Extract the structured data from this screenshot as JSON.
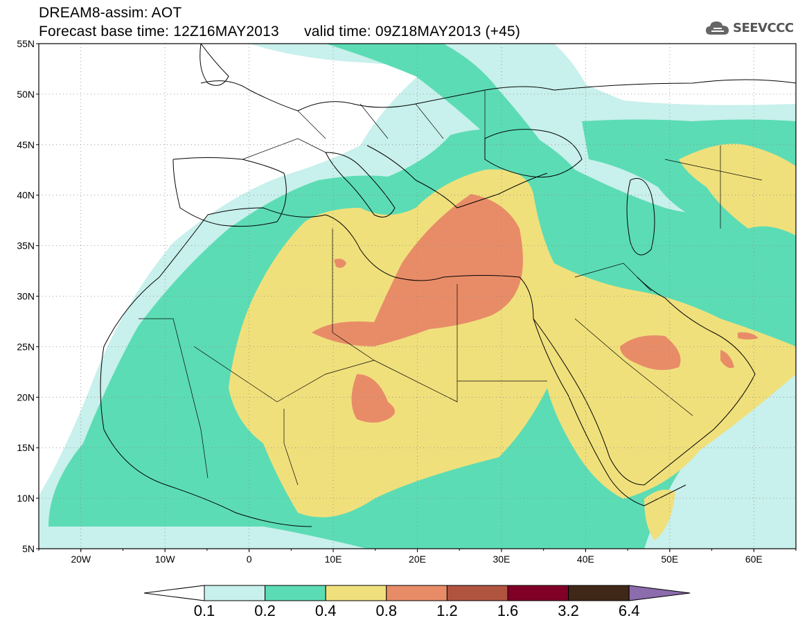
{
  "header": {
    "title": "DREAM8-assim: AOT",
    "subtitle_base": "Forecast base time: 12Z16MAY2013",
    "subtitle_valid": "valid time: 09Z18MAY2013 (+45)"
  },
  "logo": {
    "text": "SEEVCCC",
    "icon": "cloud-icon"
  },
  "map": {
    "lat_labels": [
      "55N",
      "50N",
      "45N",
      "40N",
      "35N",
      "30N",
      "25N",
      "20N",
      "15N",
      "10N",
      "5N"
    ],
    "lon_labels": [
      "20W",
      "10W",
      "0",
      "10E",
      "20E",
      "30E",
      "40E",
      "50E",
      "60E"
    ],
    "lat_range": [
      5,
      55
    ],
    "lon_range": [
      -25,
      65
    ],
    "grid": "dotted"
  },
  "colorbar": {
    "labels": [
      "0.1",
      "0.2",
      "0.4",
      "0.8",
      "1.2",
      "1.6",
      "3.2",
      "6.4"
    ],
    "colors": [
      "#ffffff",
      "#c8f0ec",
      "#5cdcb4",
      "#f0e07c",
      "#e88c68",
      "#b05440",
      "#800028",
      "#402818",
      "#8c6cac"
    ]
  }
}
